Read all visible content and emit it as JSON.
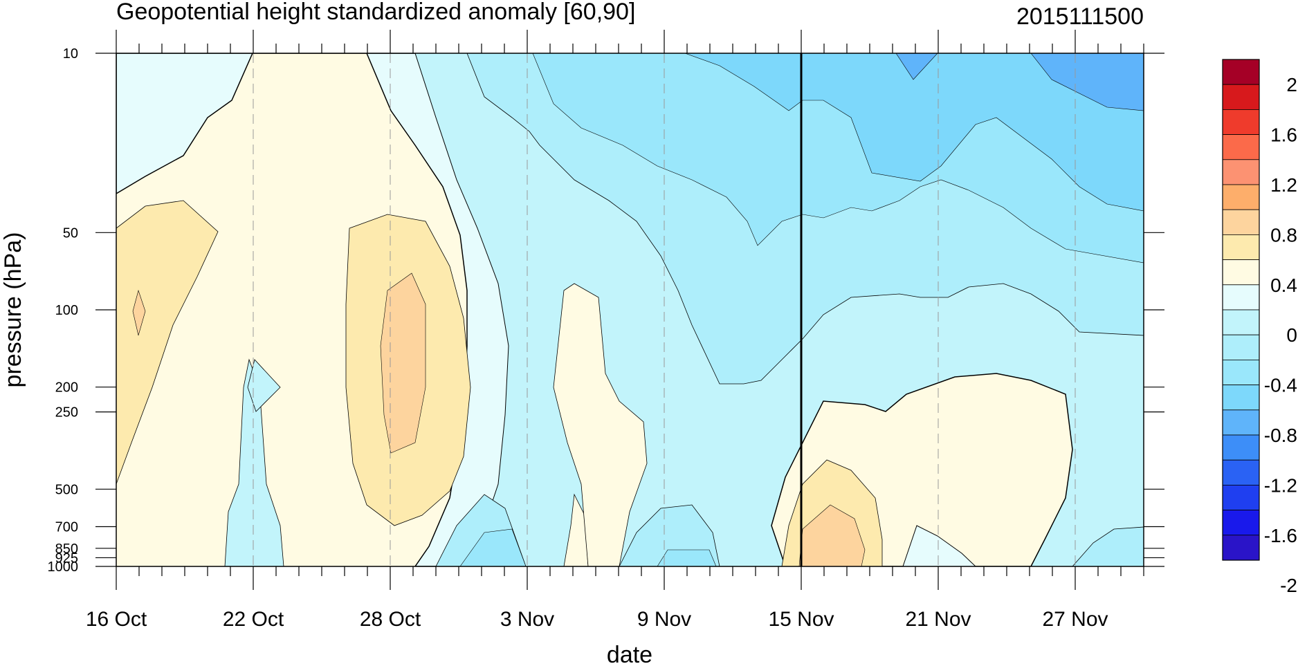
{
  "chart_data": {
    "type": "heatmap",
    "title": "Geopotential height standardized anomaly [60,90]",
    "date_stamp": "2015111500",
    "xlabel": "date",
    "ylabel": "pressure (hPa)",
    "x_ticks": [
      "16 Oct",
      "22 Oct",
      "28 Oct",
      "3 Nov",
      "9 Nov",
      "15 Nov",
      "21 Nov",
      "27 Nov"
    ],
    "x_range_days": [
      "16 Oct",
      "30 Nov"
    ],
    "y_ticks": [
      10,
      50,
      100,
      200,
      250,
      500,
      700,
      850,
      925,
      1000
    ],
    "y_scale": "log",
    "y_range": [
      1000,
      10
    ],
    "current_date_line": "15 Nov",
    "colorbar": {
      "labels": [
        "2",
        "1.6",
        "1.2",
        "0.8",
        "0.4",
        "0",
        "-0.4",
        "-0.8",
        "-1.2",
        "-1.6",
        "-2"
      ],
      "colors": [
        "#a50026",
        "#d7191c",
        "#ef3b2c",
        "#fb6a4a",
        "#fc9272",
        "#fdae6b",
        "#fdd49e",
        "#fdeaae",
        "#fffbe3",
        "#e6fcfd",
        "#c2f4fb",
        "#aeeefb",
        "#9ae7fb",
        "#7dd8fb",
        "#5fb4fa",
        "#3d8ef8",
        "#2a62f4",
        "#1f3ff0",
        "#1919eb",
        "#2a14c8"
      ]
    },
    "regions": [
      {
        "value": -0.9,
        "desc": "upper stratosphere negative anomaly, 5 Nov - 30 Nov, 10-50 hPa"
      },
      {
        "value": -0.6,
        "desc": "mid-level negative anomaly, 30 Oct - 30 Nov, 10-200 hPa"
      },
      {
        "value": 0.5,
        "desc": "positive anomaly centered 28 Oct, 50-700 hPa"
      },
      {
        "value": 0.3,
        "desc": "positive anomaly 16-19 Oct, 50-500 hPa"
      },
      {
        "value": 0.6,
        "desc": "low-level positive anomaly 15-18 Nov, 500-1000 hPa"
      },
      {
        "value": 0.1,
        "desc": "tropospheric positive anomaly 15-27 Nov, 200-1000 hPa"
      }
    ]
  }
}
